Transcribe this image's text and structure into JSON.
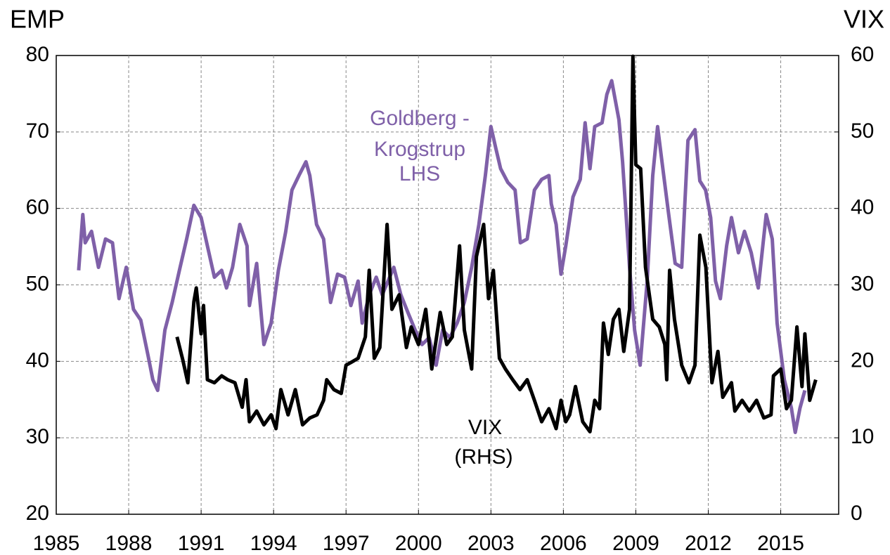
{
  "chart_data": {
    "type": "line",
    "y_axis_label": "EMP",
    "y2_axis_label": "VIX",
    "annotations": [
      {
        "text": "Goldberg -",
        "series": 0
      },
      {
        "text": "Krogstrup",
        "series": 0
      },
      {
        "text": "LHS",
        "series": 0
      },
      {
        "text": "VIX",
        "series": 1
      },
      {
        "text": "(RHS)",
        "series": 1
      }
    ],
    "xlim": [
      1985,
      2017.4
    ],
    "xticks": [
      1985,
      1988,
      1991,
      1994,
      1997,
      2000,
      2003,
      2006,
      2009,
      2012,
      2015
    ],
    "ylim": [
      20,
      80
    ],
    "yticks": [
      20,
      30,
      40,
      50,
      60,
      70,
      80
    ],
    "y2lim": [
      0,
      60
    ],
    "y2ticks": [
      0,
      10,
      20,
      30,
      40,
      50,
      60
    ],
    "grid": true,
    "series": [
      {
        "name": "Goldberg - Krogstrup",
        "color": "#7f60a8",
        "axis": "y",
        "x": [
          1985.93,
          1986.1,
          1986.2,
          1986.46,
          1986.75,
          1987.04,
          1987.33,
          1987.6,
          1987.9,
          1988.2,
          1988.5,
          1988.8,
          1989.0,
          1989.2,
          1989.5,
          1989.8,
          1990.1,
          1990.4,
          1990.7,
          1991.0,
          1991.26,
          1991.55,
          1991.85,
          1992.05,
          1992.3,
          1992.6,
          1992.9,
          1993.0,
          1993.3,
          1993.6,
          1993.9,
          1994.2,
          1994.5,
          1994.76,
          1995.05,
          1995.34,
          1995.5,
          1995.78,
          1996.07,
          1996.36,
          1996.65,
          1996.94,
          1997.2,
          1997.5,
          1997.67,
          1997.96,
          1998.25,
          1998.5,
          1998.98,
          1999.27,
          1999.56,
          1999.86,
          2000.15,
          2000.44,
          2000.73,
          2001.0,
          2001.3,
          2001.6,
          2001.9,
          2002.2,
          2002.5,
          2002.77,
          2003.0,
          2003.2,
          2003.4,
          2003.7,
          2004.0,
          2004.22,
          2004.5,
          2004.8,
          2005.1,
          2005.4,
          2005.5,
          2005.7,
          2005.9,
          2006.1,
          2006.4,
          2006.7,
          2006.9,
          2007.1,
          2007.3,
          2007.6,
          2007.8,
          2008.0,
          2008.3,
          2008.45,
          2008.74,
          2008.95,
          2009.18,
          2009.47,
          2009.7,
          2009.9,
          2010.1,
          2010.34,
          2010.63,
          2010.9,
          2011.16,
          2011.45,
          2011.65,
          2011.89,
          2012.1,
          2012.3,
          2012.5,
          2012.76,
          2012.96,
          2013.25,
          2013.5,
          2013.78,
          2014.07,
          2014.4,
          2014.65,
          2014.85,
          2015.15,
          2015.44,
          2015.6,
          2015.8,
          2016.0
        ],
        "values": [
          51.9,
          59.2,
          55.5,
          57,
          52.3,
          56,
          55.5,
          48.2,
          52.3,
          46.8,
          45.4,
          40.8,
          37.6,
          36.2,
          44.1,
          47.7,
          51.9,
          56,
          60.4,
          58.8,
          55.1,
          51,
          51.9,
          49.6,
          52.3,
          57.9,
          55.1,
          47.3,
          52.8,
          42.2,
          45,
          51.9,
          56.9,
          62.4,
          64.3,
          66.1,
          64.3,
          57.9,
          56,
          47.7,
          51.4,
          51,
          47.3,
          50.5,
          45,
          48.7,
          51,
          48.7,
          52.3,
          48.7,
          46.4,
          44.1,
          42.2,
          43.1,
          39.5,
          44.1,
          43.1,
          45,
          47.7,
          52.3,
          57.9,
          64.3,
          70.7,
          67.9,
          65.2,
          63.4,
          62.4,
          55.5,
          56,
          62.4,
          63.8,
          64.3,
          60.6,
          57.9,
          51.4,
          55.1,
          61.5,
          63.8,
          71.2,
          65.2,
          70.7,
          71.2,
          74.9,
          76.7,
          71.6,
          66.1,
          52.3,
          44.1,
          39.5,
          50.5,
          64.3,
          70.7,
          65.7,
          59.7,
          52.8,
          52.3,
          68.9,
          70.3,
          63.6,
          62.4,
          58.8,
          50.5,
          48.2,
          55.1,
          58.8,
          54.2,
          57,
          54.2,
          49.6,
          59.2,
          56,
          45,
          37.6,
          33.9,
          30.7,
          33.9,
          36.2
        ]
      },
      {
        "name": "VIX",
        "color": "#000000",
        "axis": "y2",
        "x": [
          1990.0,
          1990.24,
          1990.45,
          1990.7,
          1990.8,
          1991.0,
          1991.1,
          1991.26,
          1991.55,
          1991.85,
          1992.1,
          1992.4,
          1992.7,
          1992.86,
          1993.0,
          1993.3,
          1993.6,
          1993.9,
          1994.1,
          1994.3,
          1994.6,
          1994.9,
          1995.2,
          1995.5,
          1995.8,
          1996.07,
          1996.2,
          1996.5,
          1996.8,
          1997.0,
          1997.23,
          1997.5,
          1997.8,
          1997.96,
          1998.17,
          1998.4,
          1998.7,
          1998.9,
          1999.2,
          1999.5,
          1999.7,
          2000.0,
          2000.3,
          2000.55,
          2000.9,
          2001.17,
          2001.4,
          2001.7,
          2001.9,
          2002.2,
          2002.4,
          2002.7,
          2002.9,
          2003.1,
          2003.35,
          2003.6,
          2003.9,
          2004.2,
          2004.5,
          2004.8,
          2005.1,
          2005.4,
          2005.7,
          2005.9,
          2006.1,
          2006.26,
          2006.5,
          2006.8,
          2007.1,
          2007.3,
          2007.5,
          2007.66,
          2007.86,
          2008.07,
          2008.3,
          2008.5,
          2008.74,
          2008.88,
          2009.0,
          2009.2,
          2009.4,
          2009.7,
          2009.97,
          2010.2,
          2010.28,
          2010.4,
          2010.6,
          2010.9,
          2011.2,
          2011.45,
          2011.65,
          2011.9,
          2012.15,
          2012.4,
          2012.6,
          2012.96,
          2013.1,
          2013.4,
          2013.7,
          2014.0,
          2014.3,
          2014.6,
          2014.7,
          2015.0,
          2015.24,
          2015.44,
          2015.67,
          2015.88,
          2016.0,
          2016.2,
          2016.45
        ],
        "values": [
          23.2,
          20.2,
          17.2,
          27.8,
          29.6,
          23.6,
          27.3,
          17.6,
          17.2,
          18.1,
          17.6,
          17.2,
          14,
          17.6,
          12.1,
          13.5,
          11.7,
          13,
          11.2,
          16.3,
          13,
          16.3,
          11.7,
          12.6,
          13,
          14.9,
          17.6,
          16.3,
          15.8,
          19.5,
          19.9,
          20.4,
          23.2,
          31.9,
          20.4,
          21.8,
          37.9,
          26.8,
          28.7,
          21.8,
          24.5,
          22.2,
          26.8,
          19,
          26.4,
          22.2,
          23.2,
          35.1,
          24.1,
          19,
          33.7,
          37.9,
          28.2,
          31.9,
          20.4,
          19,
          17.6,
          16.3,
          17.6,
          14.9,
          12.1,
          13.8,
          11.2,
          14.9,
          12.1,
          13,
          16.7,
          12.1,
          10.8,
          14.9,
          13.8,
          25,
          20.9,
          25.5,
          26.8,
          21.3,
          26.8,
          59.9,
          45.7,
          45.2,
          32.3,
          25.5,
          24.5,
          22.2,
          17.6,
          31.9,
          25.5,
          19.5,
          17.2,
          19.5,
          36.5,
          32.3,
          17.2,
          21.3,
          15.3,
          17.2,
          13.5,
          14.9,
          13.5,
          14.9,
          12.6,
          13,
          18.1,
          19,
          13.8,
          14.9,
          24.5,
          16.7,
          23.6,
          14.9,
          17.6
        ]
      }
    ]
  }
}
